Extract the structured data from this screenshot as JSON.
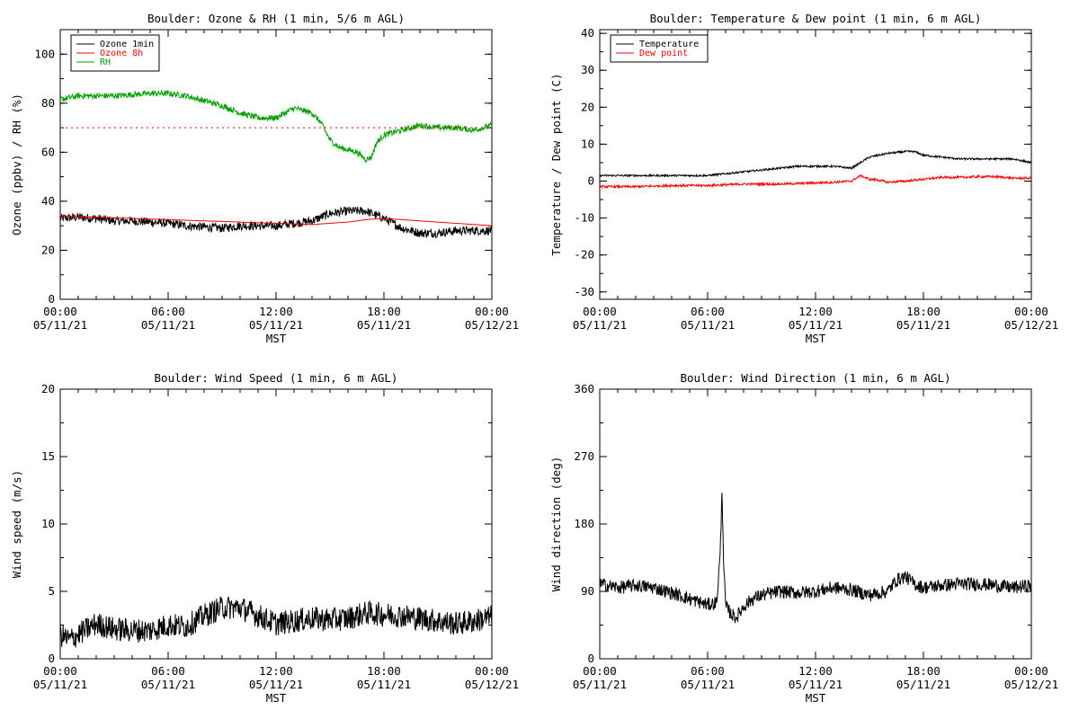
{
  "chart_data": [
    {
      "type": "line",
      "title": "Boulder: Ozone & RH (1 min, 5/6 m AGL)",
      "ylabel": "Ozone (ppbv) / RH (%)",
      "xlabel": "MST",
      "ylim": [
        0,
        110
      ],
      "yticks": [
        0,
        20,
        40,
        60,
        80,
        100
      ],
      "xlim": [
        0,
        24
      ],
      "xtick_hours": [
        0,
        6,
        12,
        18,
        24
      ],
      "xtick_labels": [
        [
          "00:00",
          "05/11/21"
        ],
        [
          "06:00",
          "05/11/21"
        ],
        [
          "12:00",
          "05/11/21"
        ],
        [
          "18:00",
          "05/11/21"
        ],
        [
          "00:00",
          "05/12/21"
        ]
      ],
      "legend_position": "top-left",
      "series": [
        {
          "name": "Ozone 1min",
          "color": "#000000",
          "style": "noisy",
          "noise": 1.8,
          "x": [
            0,
            1,
            2,
            3,
            4,
            5,
            6,
            7,
            8,
            9,
            10,
            11,
            12,
            13,
            14,
            15,
            16,
            17,
            18,
            19,
            20,
            21,
            22,
            23,
            24
          ],
          "y": [
            33,
            33.5,
            33,
            32,
            32,
            31.5,
            31,
            30,
            29.5,
            29,
            30,
            30,
            30,
            31,
            32,
            35,
            36,
            36,
            33,
            29,
            27,
            27,
            28,
            28,
            28
          ]
        },
        {
          "name": "Ozone 8h",
          "color": "#ff0000",
          "style": "smooth",
          "x": [
            0,
            2,
            4,
            6,
            8,
            10,
            12,
            14,
            16,
            17,
            18,
            20,
            22,
            24
          ],
          "y": [
            34,
            33.5,
            33,
            32.5,
            32,
            31.5,
            31,
            30.5,
            31.5,
            32.5,
            33,
            32,
            31,
            30
          ]
        },
        {
          "name": "RH",
          "color": "#00a000",
          "style": "noisy",
          "noise": 1.2,
          "x": [
            0,
            1,
            2,
            3,
            4,
            5,
            6,
            7,
            8,
            9,
            10,
            11,
            12,
            13,
            14,
            14.5,
            15,
            15.5,
            16,
            16.5,
            17,
            17.3,
            17.6,
            18,
            19,
            20,
            21,
            22,
            23,
            24
          ],
          "y": [
            81.5,
            83,
            83,
            83,
            83.5,
            84,
            84,
            83,
            81,
            79,
            76,
            74,
            74,
            78,
            76,
            72,
            65,
            62,
            61,
            60,
            57,
            58,
            64,
            67,
            69,
            71,
            70,
            70,
            69,
            71
          ]
        },
        {
          "name": "",
          "color": "#ff0000",
          "style": "dotted",
          "x": [
            0,
            24
          ],
          "y": [
            70,
            70
          ]
        }
      ]
    },
    {
      "type": "line",
      "title": "Boulder: Temperature & Dew point (1 min, 6 m AGL)",
      "ylabel": "Temperature / Dew point (C)",
      "xlabel": "MST",
      "ylim": [
        -32,
        41
      ],
      "yticks": [
        -30,
        -20,
        -10,
        0,
        10,
        20,
        30,
        40
      ],
      "xlim": [
        0,
        24
      ],
      "xtick_hours": [
        0,
        6,
        12,
        18,
        24
      ],
      "xtick_labels": [
        [
          "00:00",
          "05/11/21"
        ],
        [
          "06:00",
          "05/11/21"
        ],
        [
          "12:00",
          "05/11/21"
        ],
        [
          "18:00",
          "05/11/21"
        ],
        [
          "00:00",
          "05/12/21"
        ]
      ],
      "legend_position": "top-left",
      "series": [
        {
          "name": "Temperature",
          "color": "#000000",
          "style": "noisy",
          "noise": 0.25,
          "x": [
            0,
            2,
            4,
            6,
            7,
            8,
            9,
            10,
            11,
            12,
            13,
            14,
            15,
            16,
            17,
            17.5,
            18,
            19,
            20,
            21,
            22,
            23,
            24
          ],
          "y": [
            1.5,
            1.5,
            1.5,
            1.5,
            2,
            2.5,
            3,
            3.5,
            4,
            4,
            4,
            3.5,
            6.5,
            7.5,
            8,
            8,
            7,
            6.5,
            6,
            6,
            6,
            6,
            5
          ]
        },
        {
          "name": "Dew point",
          "color": "#ff0000",
          "style": "noisy",
          "noise": 0.3,
          "x": [
            0,
            2,
            4,
            6,
            8,
            10,
            12,
            13,
            14,
            14.5,
            15,
            15.5,
            16,
            17,
            18,
            19,
            20,
            21,
            22,
            23,
            24
          ],
          "y": [
            -1.5,
            -1.5,
            -1.2,
            -1.2,
            -0.8,
            -0.8,
            -0.5,
            -0.3,
            0,
            1.5,
            0.5,
            0.3,
            -0.3,
            0,
            0.5,
            1,
            1,
            1.2,
            1.2,
            0.8,
            0.8
          ]
        }
      ]
    },
    {
      "type": "line",
      "title": "Boulder: Wind Speed (1 min, 6 m AGL)",
      "ylabel": "Wind speed (m/s)",
      "xlabel": "MST",
      "ylim": [
        0,
        20
      ],
      "yticks": [
        0,
        5,
        10,
        15,
        20
      ],
      "xlim": [
        0,
        24
      ],
      "xtick_hours": [
        0,
        6,
        12,
        18,
        24
      ],
      "xtick_labels": [
        [
          "00:00",
          "05/11/21"
        ],
        [
          "06:00",
          "05/11/21"
        ],
        [
          "12:00",
          "05/11/21"
        ],
        [
          "18:00",
          "05/11/21"
        ],
        [
          "00:00",
          "05/12/21"
        ]
      ],
      "series": [
        {
          "name": "",
          "color": "#000000",
          "style": "noisy",
          "noise": 0.9,
          "x": [
            0,
            0.5,
            1,
            2,
            3,
            4,
            5,
            6,
            7,
            8,
            9,
            10,
            11,
            12,
            13,
            14,
            15,
            16,
            17,
            18,
            19,
            20,
            21,
            22,
            23,
            24
          ],
          "y": [
            1.8,
            1.4,
            1.8,
            2.6,
            2.2,
            2.1,
            2.1,
            2.5,
            2.4,
            3.2,
            3.8,
            3.8,
            3.2,
            2.6,
            2.8,
            3,
            2.9,
            3,
            3.4,
            3.3,
            3.2,
            3,
            2.8,
            2.6,
            2.8,
            3.1
          ]
        }
      ]
    },
    {
      "type": "line",
      "title": "Boulder: Wind Direction (1 min, 6 m AGL)",
      "ylabel": "Wind direction (deg)",
      "xlabel": "MST",
      "ylim": [
        0,
        360
      ],
      "yticks": [
        0,
        90,
        180,
        270,
        360
      ],
      "xlim": [
        0,
        24
      ],
      "xtick_hours": [
        0,
        6,
        12,
        18,
        24
      ],
      "xtick_labels": [
        [
          "00:00",
          "05/11/21"
        ],
        [
          "06:00",
          "05/11/21"
        ],
        [
          "12:00",
          "05/11/21"
        ],
        [
          "18:00",
          "05/11/21"
        ],
        [
          "00:00",
          "05/12/21"
        ]
      ],
      "series": [
        {
          "name": "",
          "color": "#000000",
          "style": "noisy",
          "noise": 9,
          "x": [
            0,
            1,
            2,
            3,
            4,
            5,
            6,
            6.5,
            6.7,
            6.8,
            6.9,
            7,
            7.3,
            7.6,
            8,
            8.5,
            9,
            10,
            11,
            12,
            13,
            14,
            15,
            16,
            16.5,
            17,
            17.5,
            18,
            19,
            20,
            21,
            22,
            23,
            24
          ],
          "y": [
            100,
            95,
            98,
            95,
            88,
            80,
            72,
            75,
            140,
            225,
            120,
            70,
            60,
            55,
            70,
            80,
            85,
            90,
            88,
            90,
            95,
            92,
            85,
            90,
            105,
            110,
            100,
            95,
            98,
            100,
            100,
            98,
            95,
            98
          ]
        }
      ]
    }
  ]
}
